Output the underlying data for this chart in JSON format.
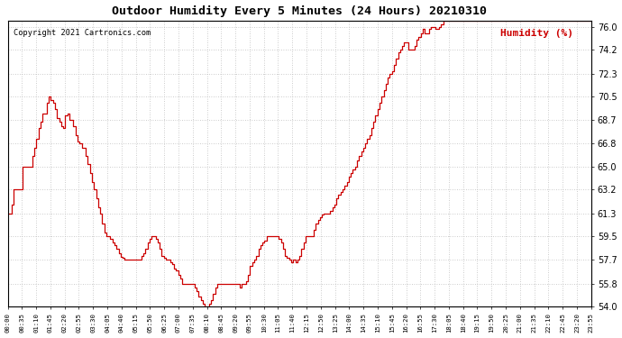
{
  "title": "Outdoor Humidity Every 5 Minutes (24 Hours) 20210310",
  "copyright": "Copyright 2021 Cartronics.com",
  "legend_label": "Humidity (%)",
  "line_color": "#cc0000",
  "background_color": "#ffffff",
  "grid_color": "#bbbbbb",
  "ylim": [
    54.0,
    76.5
  ],
  "yticks": [
    54.0,
    55.8,
    57.7,
    59.5,
    61.3,
    63.2,
    65.0,
    66.8,
    68.7,
    70.5,
    72.3,
    74.2,
    76.0
  ],
  "x_labels": [
    "00:00",
    "00:35",
    "01:10",
    "01:45",
    "02:20",
    "02:55",
    "03:30",
    "04:05",
    "04:40",
    "05:15",
    "05:50",
    "06:25",
    "07:00",
    "07:35",
    "08:10",
    "08:45",
    "09:20",
    "09:55",
    "10:30",
    "11:05",
    "11:40",
    "12:15",
    "12:50",
    "13:25",
    "14:00",
    "14:35",
    "15:10",
    "15:45",
    "16:20",
    "16:55",
    "17:30",
    "18:05",
    "18:40",
    "19:15",
    "19:50",
    "20:25",
    "21:00",
    "21:35",
    "22:10",
    "22:45",
    "23:20",
    "23:55"
  ],
  "humidity_data": [
    61.3,
    61.3,
    62.0,
    63.2,
    63.2,
    63.2,
    63.2,
    65.0,
    65.0,
    65.0,
    65.0,
    65.0,
    65.8,
    66.5,
    67.2,
    68.0,
    68.5,
    69.2,
    69.2,
    70.0,
    70.5,
    70.2,
    70.0,
    69.5,
    68.8,
    68.5,
    68.2,
    68.0,
    69.0,
    69.2,
    68.7,
    68.7,
    68.2,
    67.5,
    67.0,
    66.8,
    66.5,
    66.5,
    65.8,
    65.2,
    64.5,
    63.8,
    63.2,
    62.5,
    61.8,
    61.3,
    60.5,
    59.8,
    59.5,
    59.5,
    59.3,
    59.0,
    58.8,
    58.5,
    58.2,
    57.9,
    57.8,
    57.7,
    57.7,
    57.7,
    57.7,
    57.7,
    57.7,
    57.7,
    57.7,
    58.0,
    58.2,
    58.5,
    59.0,
    59.3,
    59.5,
    59.5,
    59.3,
    59.0,
    58.5,
    58.0,
    57.8,
    57.7,
    57.7,
    57.5,
    57.3,
    57.0,
    56.8,
    56.5,
    56.2,
    55.8,
    55.8,
    55.8,
    55.8,
    55.8,
    55.8,
    55.5,
    55.2,
    54.8,
    54.5,
    54.2,
    54.0,
    54.0,
    54.2,
    54.5,
    55.0,
    55.5,
    55.8,
    55.8,
    55.8,
    55.8,
    55.8,
    55.8,
    55.8,
    55.8,
    55.8,
    55.8,
    55.8,
    55.5,
    55.8,
    55.8,
    56.0,
    56.5,
    57.2,
    57.5,
    57.7,
    58.0,
    58.5,
    58.8,
    59.0,
    59.2,
    59.5,
    59.5,
    59.5,
    59.5,
    59.5,
    59.5,
    59.3,
    59.0,
    58.5,
    58.0,
    57.8,
    57.7,
    57.5,
    57.7,
    57.5,
    57.7,
    58.0,
    58.5,
    59.0,
    59.5,
    59.5,
    59.5,
    59.5,
    60.0,
    60.5,
    60.8,
    61.0,
    61.2,
    61.3,
    61.3,
    61.3,
    61.5,
    61.8,
    62.0,
    62.5,
    62.8,
    63.0,
    63.2,
    63.5,
    63.8,
    64.2,
    64.5,
    64.8,
    65.0,
    65.5,
    65.8,
    66.2,
    66.5,
    66.8,
    67.2,
    67.5,
    68.0,
    68.5,
    69.0,
    69.5,
    70.0,
    70.5,
    71.0,
    71.5,
    72.0,
    72.3,
    72.5,
    73.0,
    73.5,
    74.0,
    74.2,
    74.5,
    74.8,
    74.8,
    74.2,
    74.2,
    74.2,
    74.5,
    75.0,
    75.2,
    75.5,
    75.8,
    75.5,
    75.5,
    75.8,
    76.0,
    76.0,
    75.8,
    75.8,
    76.0,
    76.2,
    76.5,
    76.5,
    76.5,
    76.5,
    76.5,
    76.5,
    76.5,
    76.5,
    76.5,
    76.5,
    76.5,
    76.5,
    76.5,
    76.5,
    76.5,
    76.5,
    76.5,
    76.5,
    76.5,
    76.5,
    76.5,
    76.5,
    76.5,
    76.5,
    76.5,
    76.5,
    76.5,
    76.5,
    76.5,
    76.5,
    76.5,
    76.5,
    76.5,
    76.5,
    76.5,
    76.5,
    76.5,
    76.5,
    76.5,
    76.5,
    76.5,
    76.5,
    76.5,
    76.5,
    76.5,
    76.5,
    76.5,
    76.5,
    76.5,
    76.5,
    76.5,
    76.5,
    76.5,
    76.5,
    76.5,
    76.5,
    76.5,
    76.5,
    76.5,
    76.5,
    76.5,
    76.5,
    76.5,
    76.5,
    76.5,
    76.5,
    76.5,
    76.5,
    76.5,
    76.5,
    76.5,
    76.5,
    76.5
  ]
}
